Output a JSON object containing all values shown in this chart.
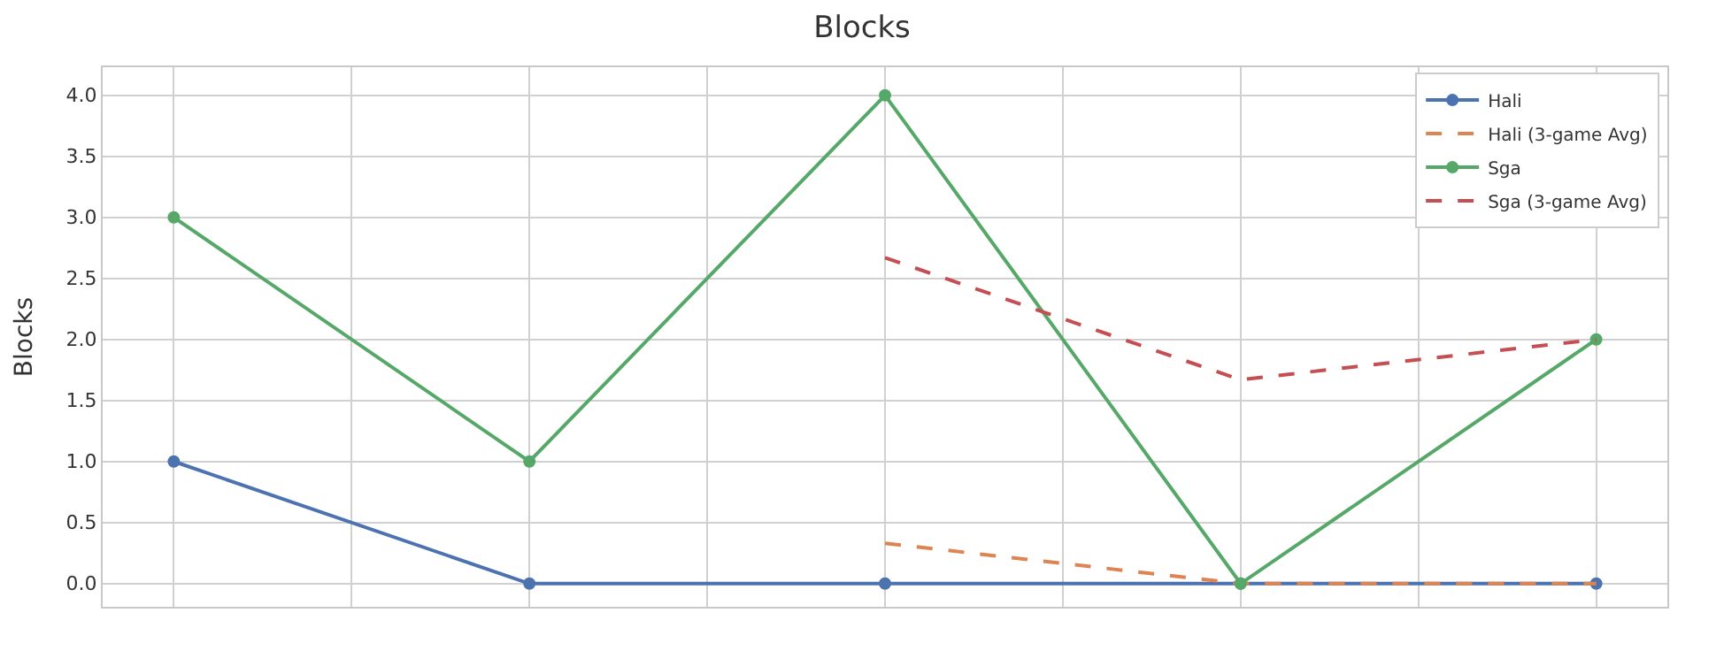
{
  "chart_data": {
    "type": "line",
    "title": "Blocks",
    "ylabel": "Blocks",
    "categories": [
      null,
      null,
      null,
      null,
      null
    ],
    "series": [
      {
        "name": "Hali",
        "color": "#4c72b0",
        "values": [
          1,
          0,
          0,
          0,
          0
        ],
        "marker": "circle",
        "line_style": "solid"
      },
      {
        "name": "Hali (3-game Avg)",
        "color": "#dd8452",
        "values": [
          null,
          null,
          0.33,
          0,
          0
        ],
        "marker": "none",
        "line_style": "dashed"
      },
      {
        "name": "Sga",
        "color": "#55a868",
        "values": [
          3,
          1,
          4,
          0,
          2
        ],
        "marker": "circle",
        "line_style": "solid"
      },
      {
        "name": "Sga (3-game Avg)",
        "color": "#c44e52",
        "values": [
          null,
          null,
          2.67,
          1.67,
          2
        ],
        "marker": "none",
        "line_style": "dashed"
      }
    ],
    "ylim": [
      -0.19,
      4.23
    ],
    "yticks": [
      {
        "value": 0,
        "label": "0.0"
      },
      {
        "value": 0.5,
        "label": "0.5"
      },
      {
        "value": 1,
        "label": "1.0"
      },
      {
        "value": 1.5,
        "label": "1.5"
      },
      {
        "value": 2,
        "label": "2.0"
      },
      {
        "value": 2.5,
        "label": "2.5"
      },
      {
        "value": 3,
        "label": "3.0"
      },
      {
        "value": 3.5,
        "label": "3.5"
      },
      {
        "value": 4,
        "label": "4.0"
      }
    ],
    "grid": true,
    "legend": "top right",
    "tick_labels": "y"
  }
}
